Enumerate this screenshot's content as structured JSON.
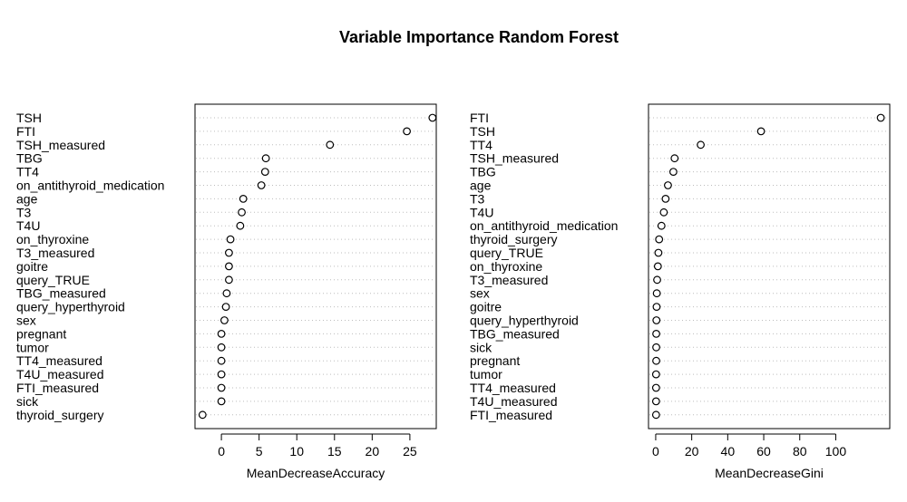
{
  "title": "Variable Importance Random Forest",
  "chart_data": [
    {
      "type": "scatter",
      "xlabel": "MeanDecreaseAccuracy",
      "xlim": [
        -3.5,
        28.5
      ],
      "xticks": [
        0,
        5,
        10,
        15,
        20,
        25
      ],
      "grid": "dotted horizontal",
      "categories": [
        "TSH",
        "FTI",
        "TSH_measured",
        "TBG",
        "TT4",
        "on_antithyroid_medication",
        "age",
        "T3",
        "T4U",
        "on_thyroxine",
        "T3_measured",
        "goitre",
        "query_TRUE",
        "TBG_measured",
        "query_hyperthyroid",
        "sex",
        "pregnant",
        "tumor",
        "TT4_measured",
        "T4U_measured",
        "FTI_measured",
        "sick",
        "thyroid_surgery"
      ],
      "values": [
        28.0,
        24.6,
        14.4,
        5.9,
        5.8,
        5.3,
        2.9,
        2.7,
        2.5,
        1.2,
        1.0,
        1.0,
        1.0,
        0.7,
        0.6,
        0.4,
        0.0,
        0.0,
        0.0,
        0.0,
        0.0,
        0.0,
        -2.5
      ]
    },
    {
      "type": "scatter",
      "xlabel": "MeanDecreaseGini",
      "xlim": [
        -4,
        130
      ],
      "xticks": [
        0,
        20,
        40,
        60,
        80,
        100
      ],
      "grid": "dotted horizontal",
      "categories": [
        "FTI",
        "TSH",
        "TT4",
        "TSH_measured",
        "TBG",
        "age",
        "T3",
        "T4U",
        "on_antithyroid_medication",
        "thyroid_surgery",
        "query_TRUE",
        "on_thyroxine",
        "T3_measured",
        "sex",
        "goitre",
        "query_hyperthyroid",
        "TBG_measured",
        "sick",
        "pregnant",
        "tumor",
        "TT4_measured",
        "T4U_measured",
        "FTI_measured"
      ],
      "values": [
        125.0,
        58.5,
        25.0,
        10.5,
        9.8,
        6.8,
        5.5,
        4.5,
        3.2,
        1.9,
        1.5,
        1.2,
        0.8,
        0.6,
        0.5,
        0.4,
        0.3,
        0.3,
        0.3,
        0.2,
        0.2,
        0.2,
        0.2
      ]
    }
  ]
}
